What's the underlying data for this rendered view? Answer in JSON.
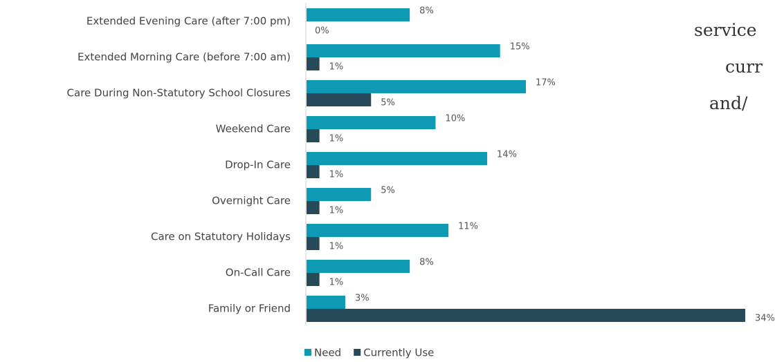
{
  "chart_data": {
    "type": "bar",
    "orientation": "horizontal",
    "categories": [
      "Extended Evening Care (after 7:00 pm)",
      "Extended Morning Care (before 7:00 am)",
      "Care During Non-Statutory School Closures",
      "Weekend Care",
      "Drop-In Care",
      "Overnight Care",
      "Care on Statutory Holidays",
      "On-Call Care",
      "Family or Friend"
    ],
    "series": [
      {
        "name": "Need",
        "color": "#0f9ab4",
        "values": [
          8,
          15,
          17,
          10,
          14,
          5,
          11,
          8,
          3
        ],
        "value_labels": [
          "8%",
          "15%",
          "17%",
          "10%",
          "14%",
          "5%",
          "11%",
          "8%",
          "3%"
        ]
      },
      {
        "name": "Currently Use",
        "color": "#264a5a",
        "values": [
          0,
          1,
          5,
          1,
          1,
          1,
          1,
          1,
          34
        ],
        "value_labels": [
          "0%",
          "1%",
          "5%",
          "1%",
          "1%",
          "1%",
          "1%",
          "1%",
          "34%"
        ]
      }
    ],
    "legend": "bottom",
    "annotations": [
      "service",
      "curr",
      "and/"
    ]
  }
}
